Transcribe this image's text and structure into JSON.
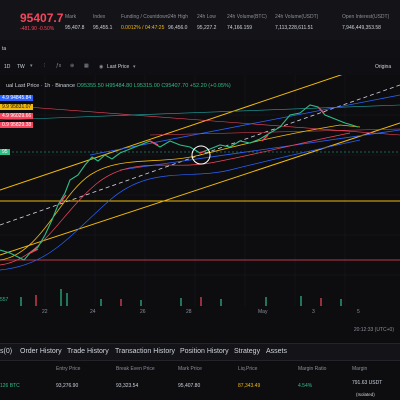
{
  "ticker": {
    "price": "95407.7",
    "change": "-481.90 -0.50%",
    "stats": [
      {
        "label": "Mark",
        "value": "95,407.8"
      },
      {
        "label": "Index",
        "value": "95,455.1"
      },
      {
        "label": "Funding / Countdown",
        "value": "0.0012% / 04:47:25"
      },
      {
        "label": "24h High",
        "value": "96,456.0"
      },
      {
        "label": "24h Low",
        "value": "95,227.2"
      },
      {
        "label": "24h Volume(BTC)",
        "value": "74,166.159"
      },
      {
        "label": "24h Volume(USDT)",
        "value": "7,113,228,611.51"
      },
      {
        "label": "Open Interest(USDT)",
        "value": "7,946,449,353.58"
      }
    ]
  },
  "toolbar": {
    "left_label": "ta",
    "timeframe": "1D",
    "tw": "TW",
    "price_type": "Last Price",
    "original": "Origina"
  },
  "chart": {
    "legend_title": "ual Last Price · 1h · Binance",
    "legend_ohlc": "O95355.50 H95484.80 L95315.00 C95407.70 +52.20 (+0.05%)",
    "price_tags": [
      {
        "text": "4.9  94845.84",
        "color": "#2962ff"
      },
      {
        "text": "9.9  95831.07",
        "color": "#f0b90b"
      },
      {
        "text": "4.9  96029.66",
        "color": "#f6465d"
      },
      {
        "text": "0.9  95829.38",
        "color": "#f6465d"
      },
      {
        "text": "95",
        "color": "#2ebd85"
      }
    ],
    "volume_label": "557",
    "x_labels": [
      "22",
      "24",
      "26",
      "28",
      "May",
      "3",
      "5"
    ],
    "clock": "20:12:33 (UTC+0)"
  },
  "bottom_tabs": [
    "s(0)",
    "Order History",
    "Trade History",
    "Transaction History",
    "Position History",
    "Strategy",
    "Assets"
  ],
  "positions": {
    "headers": [
      "",
      "Entry Price",
      "Break Even Price",
      "Mark Price",
      "Liq.Price",
      "Margin Ratio",
      "Margin"
    ],
    "values": [
      "126 BTC",
      "93,276.90",
      "93,323.54",
      "95,407.80",
      "87,343.49",
      "4.54%",
      "791.63 USDT"
    ],
    "margin_sub": "(Isolated)"
  },
  "colors": {
    "up": "#2ebd85",
    "down": "#f6465d",
    "accent": "#f0b90b",
    "blue": "#2962ff"
  }
}
